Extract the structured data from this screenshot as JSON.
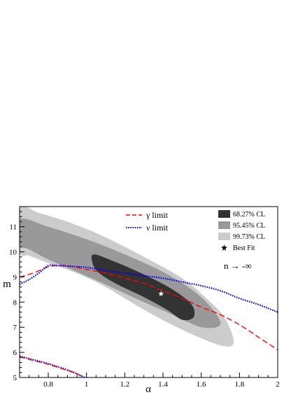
{
  "chart_data": {
    "type": "contour",
    "title": "",
    "xlabel": "α",
    "ylabel": "m",
    "xlim": [
      0.65,
      2.0
    ],
    "ylim": [
      5.0,
      11.8
    ],
    "x_ticks": [
      0.8,
      1.0,
      1.2,
      1.4,
      1.6,
      1.8,
      2.0
    ],
    "x_tick_labels": [
      "0.8",
      "1",
      "1.2",
      "1.4",
      "1.6",
      "1.8",
      "2"
    ],
    "y_ticks": [
      5,
      6,
      7,
      8,
      9,
      10,
      11
    ],
    "y_tick_labels": [
      "5",
      "6",
      "7",
      "8",
      "9",
      "10",
      "11"
    ],
    "grid": false,
    "annotation": "n → -∞",
    "best_fit": {
      "name": "Best Fit",
      "x": 1.39,
      "y": 8.33,
      "color": "#ffffff"
    },
    "regions": [
      {
        "name": "99.73% CL",
        "color": "#cccccc",
        "boundary": [
          [
            0.65,
            11.75
          ],
          [
            0.75,
            11.55
          ],
          [
            0.9,
            11.2
          ],
          [
            1.05,
            10.75
          ],
          [
            1.2,
            10.2
          ],
          [
            1.35,
            9.6
          ],
          [
            1.5,
            8.95
          ],
          [
            1.62,
            8.2
          ],
          [
            1.72,
            7.4
          ],
          [
            1.77,
            6.4
          ],
          [
            1.7,
            6.28
          ],
          [
            1.5,
            6.9
          ],
          [
            1.3,
            7.7
          ],
          [
            1.1,
            8.6
          ],
          [
            0.95,
            9.15
          ],
          [
            0.8,
            9.55
          ],
          [
            0.7,
            9.85
          ],
          [
            0.65,
            10.0
          ]
        ]
      },
      {
        "name": "95.45% CL",
        "color": "#999999",
        "boundary": [
          [
            0.65,
            11.3
          ],
          [
            0.8,
            11.0
          ],
          [
            1.0,
            10.5
          ],
          [
            1.2,
            9.9
          ],
          [
            1.4,
            9.2
          ],
          [
            1.55,
            8.5
          ],
          [
            1.65,
            7.8
          ],
          [
            1.7,
            7.1
          ],
          [
            1.6,
            7.0
          ],
          [
            1.45,
            7.5
          ],
          [
            1.3,
            8.0
          ],
          [
            1.1,
            8.7
          ],
          [
            0.95,
            9.2
          ],
          [
            0.8,
            9.7
          ],
          [
            0.7,
            10.1
          ],
          [
            0.65,
            10.3
          ]
        ]
      },
      {
        "name": "68.27% CL",
        "color": "#333333",
        "boundary": [
          [
            1.04,
            9.9
          ],
          [
            1.15,
            9.6
          ],
          [
            1.3,
            9.1
          ],
          [
            1.45,
            8.5
          ],
          [
            1.55,
            7.9
          ],
          [
            1.56,
            7.4
          ],
          [
            1.5,
            7.3
          ],
          [
            1.42,
            7.7
          ],
          [
            1.3,
            8.2
          ],
          [
            1.15,
            8.75
          ],
          [
            1.06,
            9.2
          ],
          [
            1.03,
            9.6
          ]
        ]
      }
    ],
    "series": [
      {
        "name": "γ limit",
        "color": "#ff0000",
        "style": "dashed",
        "points": [
          [
            0.65,
            9.0
          ],
          [
            0.72,
            9.15
          ],
          [
            0.8,
            9.4
          ],
          [
            0.85,
            9.45
          ],
          [
            0.9,
            9.45
          ],
          [
            1.0,
            9.3
          ],
          [
            1.1,
            9.15
          ],
          [
            1.2,
            8.95
          ],
          [
            1.3,
            8.75
          ],
          [
            1.4,
            8.45
          ],
          [
            1.5,
            8.15
          ],
          [
            1.6,
            7.8
          ],
          [
            1.7,
            7.5
          ],
          [
            1.8,
            7.1
          ],
          [
            1.9,
            6.6
          ],
          [
            2.0,
            6.1
          ]
        ]
      },
      {
        "name": "ν limit",
        "color": "#0000ff",
        "style": "dotted",
        "points": [
          [
            0.65,
            8.7
          ],
          [
            0.7,
            8.9
          ],
          [
            0.75,
            9.15
          ],
          [
            0.8,
            9.45
          ],
          [
            0.85,
            9.45
          ],
          [
            0.9,
            9.43
          ],
          [
            1.0,
            9.38
          ],
          [
            1.1,
            9.25
          ],
          [
            1.2,
            9.15
          ],
          [
            1.3,
            9.05
          ],
          [
            1.4,
            8.95
          ],
          [
            1.5,
            8.8
          ],
          [
            1.6,
            8.65
          ],
          [
            1.7,
            8.45
          ],
          [
            1.8,
            8.15
          ],
          [
            1.9,
            7.9
          ],
          [
            2.0,
            7.6
          ]
        ]
      }
    ],
    "lower_branch": [
      {
        "name": "ν limit",
        "color": "#0000ff",
        "style": "dotted",
        "points": [
          [
            0.65,
            5.85
          ],
          [
            0.7,
            5.75
          ],
          [
            0.8,
            5.55
          ],
          [
            0.9,
            5.3
          ],
          [
            0.95,
            5.15
          ],
          [
            0.99,
            5.0
          ]
        ]
      },
      {
        "name": "γ limit",
        "color": "#ff0000",
        "style": "dashed",
        "points": [
          [
            0.65,
            5.82
          ],
          [
            0.7,
            5.72
          ],
          [
            0.8,
            5.52
          ],
          [
            0.9,
            5.28
          ],
          [
            0.95,
            5.14
          ],
          [
            0.99,
            5.0
          ]
        ]
      }
    ],
    "legend": {
      "lines": [
        {
          "label": "γ limit",
          "color": "#ff0000",
          "style": "dashed"
        },
        {
          "label": "ν limit",
          "color": "#0000ff",
          "style": "dotted"
        }
      ],
      "regions": [
        {
          "label": "68.27% CL",
          "color": "#333333"
        },
        {
          "label": "95.45% CL",
          "color": "#999999"
        },
        {
          "label": "99.73% CL",
          "color": "#cccccc"
        },
        {
          "label": "Best Fit",
          "marker": "star"
        }
      ]
    }
  }
}
